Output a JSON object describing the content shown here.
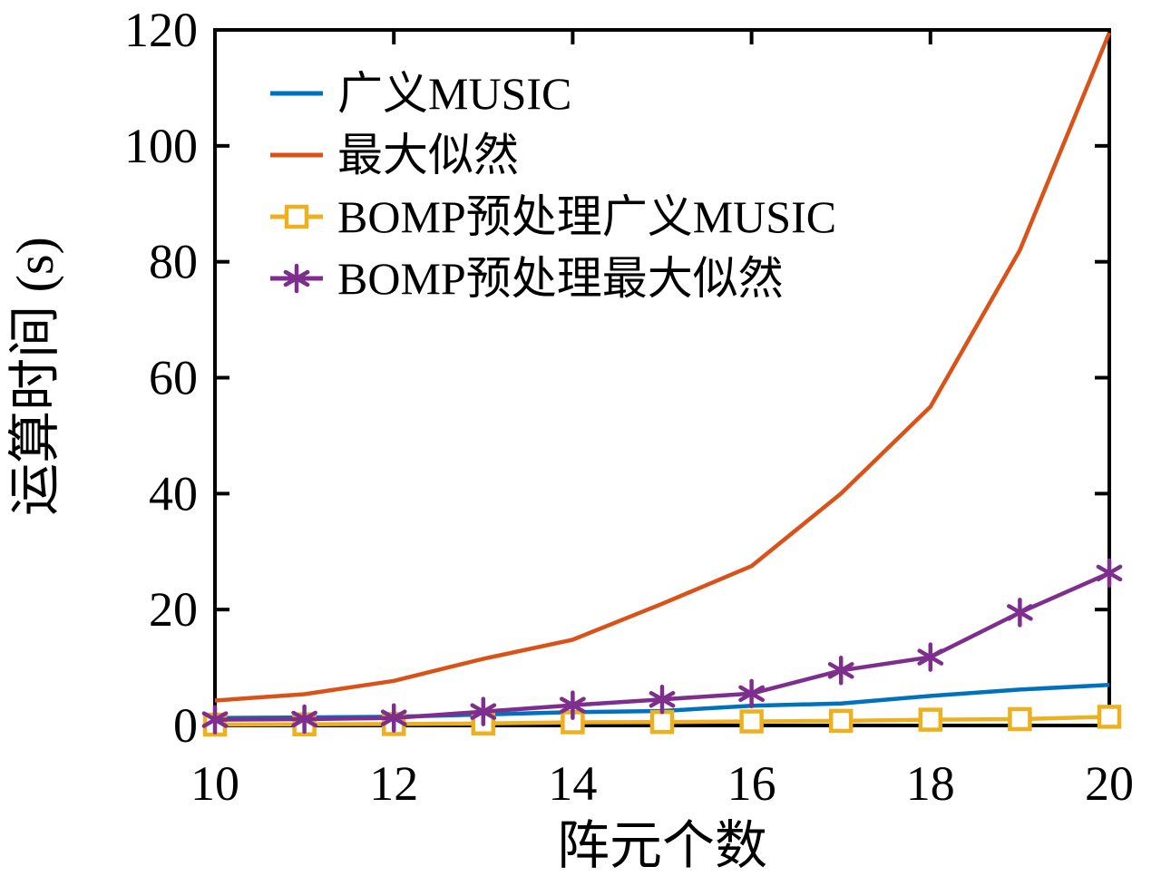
{
  "figure": {
    "background": "#ffffff",
    "axis_color": "#000000"
  },
  "chart_data": {
    "type": "line",
    "title": "",
    "xlabel": "阵元个数",
    "ylabel": "运算时间 (s)",
    "xlim": [
      10,
      20
    ],
    "ylim": [
      0,
      120
    ],
    "x_ticks": [
      10,
      12,
      14,
      16,
      18,
      20
    ],
    "y_ticks": [
      0,
      20,
      40,
      60,
      80,
      100,
      120
    ],
    "grid": false,
    "legend_position": "top-left-inside",
    "x": [
      10,
      11,
      12,
      13,
      14,
      15,
      16,
      17,
      18,
      19,
      20
    ],
    "series": [
      {
        "name": "广义MUSIC",
        "color": "#0072BD",
        "marker": "none",
        "values": [
          1.3,
          1.4,
          1.5,
          1.9,
          2.3,
          2.5,
          3.4,
          3.8,
          5.1,
          6.2,
          7.0
        ]
      },
      {
        "name": "最大似然",
        "color": "#D95319",
        "marker": "none",
        "values": [
          4.3,
          5.4,
          7.7,
          11.5,
          14.8,
          21.0,
          27.5,
          40.0,
          55.0,
          82.0,
          119.5
        ]
      },
      {
        "name": "BOMP预处理广义MUSIC",
        "color": "#EDB120",
        "marker": "square",
        "values": [
          0.15,
          0.2,
          0.25,
          0.35,
          0.55,
          0.6,
          0.7,
          0.8,
          1.0,
          1.1,
          1.5
        ]
      },
      {
        "name": "BOMP预处理最大似然",
        "color": "#7E2F8E",
        "marker": "asterisk",
        "values": [
          1.0,
          1.1,
          1.3,
          2.4,
          3.5,
          4.5,
          5.5,
          9.5,
          11.8,
          19.5,
          26.3
        ]
      }
    ]
  }
}
